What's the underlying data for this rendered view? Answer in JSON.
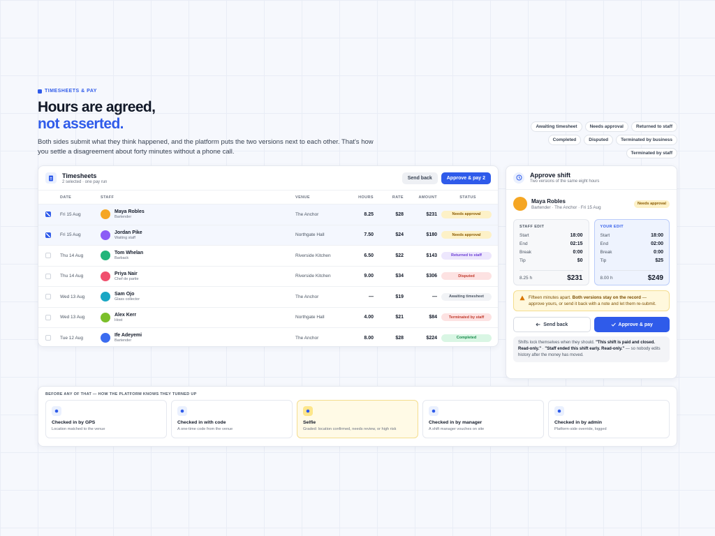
{
  "eyebrow": "TIMESHEETS & PAY",
  "headline": {
    "line1": "Hours are agreed,",
    "line2": "not asserted."
  },
  "lede": "Both sides submit what they think happened, and the platform puts the two versions next to each other. That's how you settle a disagreement about forty minutes without a phone call.",
  "status_chips": [
    "Awaiting timesheet",
    "Needs approval",
    "Returned to staff",
    "Completed",
    "Disputed",
    "Terminated by business",
    "Terminated by staff"
  ],
  "timesheets": {
    "title": "Timesheets",
    "subtitle": "2 selected · one pay run",
    "buttons": {
      "send_back": "Send back",
      "approve": "Approve & pay 2"
    },
    "columns": [
      "DATE",
      "STAFF",
      "VENUE",
      "HOURS",
      "RATE",
      "AMOUNT",
      "STATUS"
    ],
    "rows": [
      {
        "date": "Fri 15 Aug",
        "name": "Maya Robles",
        "role": "Bartender",
        "venue": "The Anchor",
        "hours": "8.25",
        "rate": "$28",
        "amount": "$231",
        "status": "Needs approval"
      },
      {
        "date": "Fri 15 Aug",
        "name": "Jordan Pike",
        "role": "Waiting staff",
        "venue": "Northgate Hall",
        "hours": "7.50",
        "rate": "$24",
        "amount": "$180",
        "status": "Needs approval"
      },
      {
        "date": "Thu 14 Aug",
        "name": "Tom Whelan",
        "role": "Barback",
        "venue": "Riverside Kitchen",
        "hours": "6.50",
        "rate": "$22",
        "amount": "$143",
        "status": "Returned to staff"
      },
      {
        "date": "Thu 14 Aug",
        "name": "Priya Nair",
        "role": "Chef de partie",
        "venue": "Riverside Kitchen",
        "hours": "9.00",
        "rate": "$34",
        "amount": "$306",
        "status": "Disputed"
      },
      {
        "date": "Wed 13 Aug",
        "name": "Sam Ojo",
        "role": "Glass collector",
        "venue": "The Anchor",
        "hours": "—",
        "rate": "$19",
        "amount": "—",
        "status": "Awaiting timesheet"
      },
      {
        "date": "Wed 13 Aug",
        "name": "Alex Kerr",
        "role": "Host",
        "venue": "Northgate Hall",
        "hours": "4.00",
        "rate": "$21",
        "amount": "$84",
        "status": "Terminated by staff"
      },
      {
        "date": "Tue 12 Aug",
        "name": "Ife Adeyemi",
        "role": "Bartender",
        "venue": "The Anchor",
        "hours": "8.00",
        "rate": "$28",
        "amount": "$224",
        "status": "Completed"
      }
    ]
  },
  "approve_panel": {
    "title": "Approve shift",
    "subtitle": "Two versions of the same eight hours",
    "person": {
      "name": "Maya Robles",
      "detail": "Bartender · The Anchor · Fri 15 Aug",
      "status": "Needs approval"
    },
    "staff_edit": {
      "label": "STAFF EDIT",
      "fields": [
        {
          "label": "Start",
          "value": "18:00"
        },
        {
          "label": "End",
          "value": "02:15"
        },
        {
          "label": "Break",
          "value": "0:00"
        },
        {
          "label": "Tip",
          "value": "$0"
        }
      ],
      "hours": "8.25 h",
      "total": "$231"
    },
    "your_edit": {
      "label": "YOUR EDIT",
      "fields": [
        {
          "label": "Start",
          "value": "18:00"
        },
        {
          "label": "End",
          "value": "02:00"
        },
        {
          "label": "Break",
          "value": "0:00"
        },
        {
          "label": "Tip",
          "value": "$25"
        }
      ],
      "hours": "8.00 h",
      "total": "$249"
    },
    "warning": {
      "before": "Fifteen minutes apart. ",
      "bold": "Both versions stay on the record",
      "after": " — approve yours, or send it back with a note and let them re-submit."
    },
    "buttons": {
      "send_back": "Send back",
      "approve": "Approve & pay"
    },
    "note": {
      "before": "Shifts lock themselves when they should. ",
      "quote1": "\"This shift is paid and closed. Read-only.\"",
      "sep": " · ",
      "quote2": "\"Staff ended this shift early. Read-only.\"",
      "after": " — so nobody edits history after the money has moved."
    }
  },
  "arrival": {
    "title": "BEFORE ANY OF THAT — HOW THE PLATFORM KNOWS THEY TURNED UP",
    "methods": [
      {
        "title": "Checked in by GPS",
        "description": "Location matched to the venue"
      },
      {
        "title": "Checked in with code",
        "description": "A one-time code from the venue"
      },
      {
        "title": "Selfie",
        "description": "Graded: location confirmed, needs review, or high risk"
      },
      {
        "title": "Checked in by manager",
        "description": "A shift manager vouches on site"
      },
      {
        "title": "Checked in by admin",
        "description": "Platform-side override, logged"
      }
    ]
  }
}
